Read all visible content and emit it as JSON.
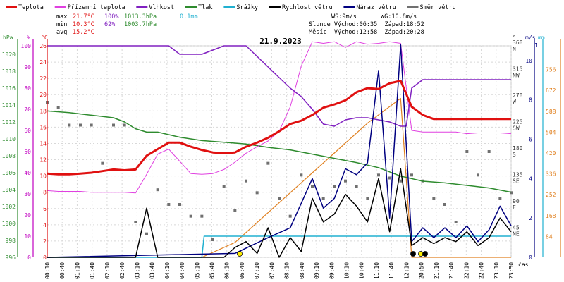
{
  "chart_data": {
    "type": "line",
    "title": "21.9.2023",
    "legend": [
      {
        "label": "Teplota",
        "color": "#e01010"
      },
      {
        "label": "Přízemní teplota",
        "color": "#e040e0"
      },
      {
        "label": "Vlhkost",
        "color": "#8020c0"
      },
      {
        "label": "Tlak",
        "color": "#2e8b2e"
      },
      {
        "label": "Srážky",
        "color": "#20b0d0"
      },
      {
        "label": "Rychlost větru",
        "color": "#000000"
      },
      {
        "label": "Náraz větru",
        "color": "#000080"
      },
      {
        "label": "Směr větru",
        "color": "#707070"
      }
    ],
    "stats": {
      "max": {
        "label": "max",
        "temp": "21.7°C",
        "hum": "100%",
        "press": "1013.3hPa",
        "rain": "0.1mm"
      },
      "min": {
        "label": "min",
        "temp": "10.3°C",
        "hum": "62%",
        "press": "1003.7hPa"
      },
      "avg": {
        "label": "avg",
        "temp": "15.2°C"
      }
    },
    "info": {
      "ws": "WS:9m/s",
      "wg": "WG:10.8m/s",
      "sun": "Slunce Východ:06:35  Západ:18:52",
      "moon": "Měsíc  Východ:12:58  Západ:20:28"
    },
    "axis_units": {
      "hpa": "hPa",
      "pct": "%",
      "degc": "°C",
      "deg": "°",
      "ms": "m/s",
      "mm": "mm",
      "wind_alt": "1"
    },
    "xlabel": "čas",
    "x_ticks": [
      "00:10",
      "00:40",
      "01:10",
      "01:40",
      "02:10",
      "02:40",
      "03:10",
      "03:40",
      "04:10",
      "04:40",
      "05:10",
      "05:40",
      "06:10",
      "06:40",
      "07:10",
      "07:40",
      "08:10",
      "08:40",
      "09:10",
      "09:40",
      "10:10",
      "10:40",
      "11:10",
      "11:40",
      "12:10",
      "20:50",
      "21:10",
      "21:40",
      "22:10",
      "22:40",
      "23:10",
      "23:50"
    ],
    "axes": {
      "pressure_ticks": [
        "1020",
        "1018",
        "1016",
        "1014",
        "1012",
        "1010",
        "1008",
        "1006",
        "1004",
        "1002",
        "1000",
        "998",
        "996"
      ],
      "humidity_ticks": [
        "100",
        "90",
        "80",
        "70",
        "60",
        "50",
        "40",
        "30",
        "20",
        "10",
        "0"
      ],
      "temp_ticks": [
        "26",
        "24",
        "22",
        "20",
        "18",
        "16",
        "14",
        "12",
        "10",
        "8",
        "6",
        "4",
        "2",
        "0"
      ],
      "direction_ticks": [
        {
          "deg": "360",
          "dir": "N"
        },
        {
          "deg": "315",
          "dir": "NW"
        },
        {
          "deg": "270",
          "dir": "W"
        },
        {
          "deg": "225",
          "dir": "SW"
        },
        {
          "deg": "180",
          "dir": "S"
        },
        {
          "deg": "135",
          "dir": "SE"
        },
        {
          "deg": "90",
          "dir": "E"
        },
        {
          "deg": "45",
          "dir": "NE"
        }
      ],
      "wind_ticks": [
        "10",
        "8",
        "6",
        "4",
        "2",
        "0"
      ],
      "rain_ticks": [
        "756",
        "672",
        "588",
        "504",
        "420",
        "336",
        "252",
        "168",
        "84"
      ],
      "temp_range": [
        0,
        26
      ],
      "wind_range": [
        0,
        10.75
      ],
      "direction_range": [
        0,
        360
      ],
      "pressure_range": [
        996,
        1021
      ],
      "humidity_range": [
        0,
        100
      ]
    },
    "series": {
      "temperature": [
        [
          0,
          10.3
        ],
        [
          1,
          10.2
        ],
        [
          2,
          10.2
        ],
        [
          3,
          10.3
        ],
        [
          4,
          10.4
        ],
        [
          5,
          10.6
        ],
        [
          6,
          10.8
        ],
        [
          7,
          10.7
        ],
        [
          8,
          10.8
        ],
        [
          9,
          12.5
        ],
        [
          10,
          13.3
        ],
        [
          11,
          14.1
        ],
        [
          12,
          14.1
        ],
        [
          13,
          13.6
        ],
        [
          14,
          13.2
        ],
        [
          15,
          12.9
        ],
        [
          16,
          12.8
        ],
        [
          17,
          12.9
        ],
        [
          18,
          13.6
        ],
        [
          19,
          14.1
        ],
        [
          20,
          14.7
        ],
        [
          21,
          15.5
        ],
        [
          22,
          16.4
        ],
        [
          23,
          16.8
        ],
        [
          24,
          17.5
        ],
        [
          25,
          18.4
        ],
        [
          26,
          18.8
        ],
        [
          27,
          19.3
        ],
        [
          28,
          20.3
        ],
        [
          29,
          20.8
        ],
        [
          30,
          20.7
        ],
        [
          31,
          21.4
        ],
        [
          32,
          21.7
        ],
        [
          33,
          18.5
        ],
        [
          34,
          17.5
        ],
        [
          35,
          17.0
        ],
        [
          36,
          17.0
        ],
        [
          37,
          17.0
        ],
        [
          38,
          17.0
        ],
        [
          39,
          17.0
        ],
        [
          40,
          17.0
        ],
        [
          41,
          17.0
        ],
        [
          42,
          17.0
        ]
      ],
      "ground_temperature": [
        [
          0,
          8.2
        ],
        [
          1,
          8.1
        ],
        [
          2,
          8.1
        ],
        [
          3,
          8.1
        ],
        [
          4,
          8.0
        ],
        [
          5,
          8.0
        ],
        [
          6,
          8.0
        ],
        [
          7,
          8.0
        ],
        [
          8,
          7.9
        ],
        [
          9,
          10.2
        ],
        [
          10,
          12.7
        ],
        [
          11,
          13.3
        ],
        [
          12,
          11.8
        ],
        [
          13,
          10.3
        ],
        [
          14,
          10.2
        ],
        [
          15,
          10.3
        ],
        [
          16,
          10.8
        ],
        [
          17,
          11.7
        ],
        [
          18,
          12.8
        ],
        [
          19,
          13.6
        ],
        [
          20,
          14.3
        ],
        [
          21,
          15.5
        ],
        [
          22,
          18.5
        ],
        [
          23,
          23.5
        ],
        [
          24,
          26.5
        ],
        [
          25,
          26.3
        ],
        [
          26,
          26.5
        ],
        [
          27,
          25.8
        ],
        [
          28,
          26.5
        ],
        [
          29,
          26.2
        ],
        [
          30,
          26.3
        ],
        [
          31,
          26.5
        ],
        [
          32,
          26.3
        ],
        [
          33,
          15.6
        ],
        [
          34,
          15.4
        ],
        [
          35,
          15.4
        ],
        [
          36,
          15.4
        ],
        [
          37,
          15.4
        ],
        [
          38,
          15.2
        ],
        [
          39,
          15.3
        ],
        [
          40,
          15.3
        ],
        [
          41,
          15.3
        ],
        [
          42,
          15.2
        ]
      ],
      "humidity": [
        [
          0,
          100
        ],
        [
          3,
          100
        ],
        [
          6,
          100
        ],
        [
          9,
          100
        ],
        [
          11,
          100
        ],
        [
          12,
          96
        ],
        [
          13,
          96
        ],
        [
          14,
          96
        ],
        [
          15,
          98
        ],
        [
          16,
          100
        ],
        [
          18,
          100
        ],
        [
          19,
          95
        ],
        [
          20,
          90
        ],
        [
          21,
          85
        ],
        [
          22,
          80
        ],
        [
          23,
          76
        ],
        [
          24,
          70
        ],
        [
          25,
          63
        ],
        [
          26,
          62
        ],
        [
          27,
          65
        ],
        [
          28,
          66
        ],
        [
          29,
          66
        ],
        [
          30,
          65
        ],
        [
          31,
          64
        ],
        [
          32,
          62
        ],
        [
          32.5,
          62
        ],
        [
          33,
          80
        ],
        [
          34,
          84
        ],
        [
          35,
          84
        ],
        [
          36,
          84
        ],
        [
          38,
          84
        ],
        [
          40,
          84
        ],
        [
          42,
          84
        ]
      ],
      "pressure": [
        [
          0,
          1013.3
        ],
        [
          2,
          1013.1
        ],
        [
          4,
          1012.8
        ],
        [
          6,
          1012.5
        ],
        [
          7,
          1012.0
        ],
        [
          8,
          1011.2
        ],
        [
          9,
          1010.8
        ],
        [
          10,
          1010.8
        ],
        [
          11,
          1010.5
        ],
        [
          12,
          1010.2
        ],
        [
          14,
          1009.8
        ],
        [
          16,
          1009.6
        ],
        [
          18,
          1009.4
        ],
        [
          20,
          1009.0
        ],
        [
          22,
          1008.7
        ],
        [
          24,
          1008.2
        ],
        [
          26,
          1007.7
        ],
        [
          28,
          1007.2
        ],
        [
          30,
          1006.6
        ],
        [
          32,
          1005.6
        ],
        [
          34,
          1005.0
        ],
        [
          36,
          1004.8
        ],
        [
          38,
          1004.5
        ],
        [
          40,
          1004.2
        ],
        [
          42,
          1003.7
        ]
      ],
      "rain": [
        [
          0,
          0
        ],
        [
          14,
          0
        ],
        [
          14.2,
          0.1
        ],
        [
          42,
          0.1
        ]
      ],
      "wind_speed": [
        [
          0,
          0
        ],
        [
          8,
          0
        ],
        [
          9,
          2.5
        ],
        [
          10,
          0
        ],
        [
          14,
          0
        ],
        [
          16,
          0
        ],
        [
          17,
          0.5
        ],
        [
          18,
          0.8
        ],
        [
          19,
          0.2
        ],
        [
          20,
          1.5
        ],
        [
          21,
          0
        ],
        [
          22,
          1.0
        ],
        [
          23,
          0.3
        ],
        [
          24,
          3.0
        ],
        [
          25,
          1.8
        ],
        [
          26,
          2.2
        ],
        [
          27,
          3.2
        ],
        [
          28,
          2.6
        ],
        [
          29,
          1.8
        ],
        [
          30,
          4.0
        ],
        [
          31,
          1.3
        ],
        [
          32,
          4.5
        ],
        [
          33,
          0.6
        ],
        [
          34,
          1.0
        ],
        [
          35,
          0.7
        ],
        [
          36,
          1.0
        ],
        [
          37,
          0.8
        ],
        [
          38,
          1.3
        ],
        [
          39,
          0.6
        ],
        [
          40,
          1.0
        ],
        [
          41,
          2.0
        ],
        [
          42,
          1.3
        ]
      ],
      "wind_gust": [
        [
          0,
          0
        ],
        [
          17,
          0.2
        ],
        [
          20,
          1.0
        ],
        [
          22,
          1.5
        ],
        [
          24,
          4.0
        ],
        [
          25,
          2.5
        ],
        [
          26,
          3.0
        ],
        [
          27,
          4.5
        ],
        [
          28,
          4.2
        ],
        [
          29,
          4.8
        ],
        [
          30,
          9.5
        ],
        [
          31,
          2.0
        ],
        [
          32,
          10.8
        ],
        [
          33,
          0.8
        ],
        [
          34,
          1.5
        ],
        [
          35,
          1.0
        ],
        [
          36,
          1.5
        ],
        [
          37,
          1.0
        ],
        [
          38,
          1.6
        ],
        [
          39,
          0.8
        ],
        [
          40,
          1.4
        ],
        [
          41,
          2.6
        ],
        [
          42,
          1.6
        ]
      ],
      "rain_accumulation": [
        [
          14,
          0
        ],
        [
          17,
          60
        ],
        [
          20,
          180
        ],
        [
          23,
          300
        ],
        [
          26,
          420
        ],
        [
          29,
          540
        ],
        [
          32,
          640
        ],
        [
          33,
          0
        ],
        [
          42,
          0
        ]
      ],
      "wind_direction": [
        [
          0,
          264
        ],
        [
          1,
          255
        ],
        [
          2,
          225
        ],
        [
          3,
          225
        ],
        [
          4,
          225
        ],
        [
          5,
          160
        ],
        [
          6,
          225
        ],
        [
          7,
          225
        ],
        [
          8,
          60
        ],
        [
          9,
          40
        ],
        [
          10,
          115
        ],
        [
          11,
          90
        ],
        [
          12,
          90
        ],
        [
          13,
          70
        ],
        [
          14,
          70
        ],
        [
          15,
          30
        ],
        [
          16,
          120
        ],
        [
          17,
          80
        ],
        [
          18,
          130
        ],
        [
          19,
          110
        ],
        [
          20,
          160
        ],
        [
          21,
          100
        ],
        [
          22,
          70
        ],
        [
          23,
          140
        ],
        [
          24,
          120
        ],
        [
          25,
          100
        ],
        [
          26,
          120
        ],
        [
          27,
          130
        ],
        [
          28,
          120
        ],
        [
          29,
          100
        ],
        [
          30,
          140
        ],
        [
          31,
          135
        ],
        [
          32,
          130
        ],
        [
          33,
          140
        ],
        [
          34,
          130
        ],
        [
          35,
          100
        ],
        [
          36,
          90
        ],
        [
          37,
          60
        ],
        [
          38,
          180
        ],
        [
          39,
          140
        ],
        [
          40,
          180
        ],
        [
          41,
          100
        ],
        [
          42,
          110
        ]
      ]
    }
  }
}
